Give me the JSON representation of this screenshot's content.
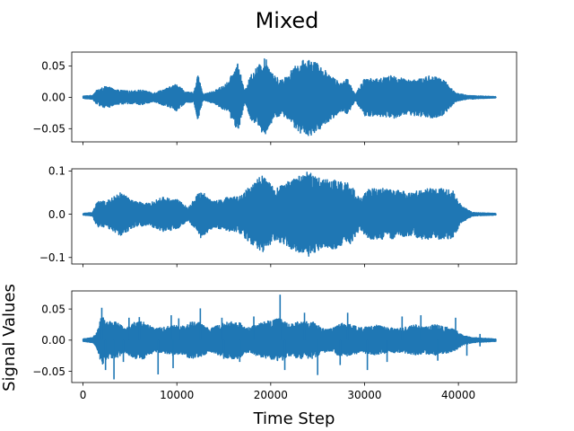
{
  "figure": {
    "suptitle": "Mixed",
    "xlabel": "Time Step",
    "ylabel": "Signal Values"
  },
  "chart_data": [
    {
      "type": "line",
      "title": "",
      "xlim": [
        -1200,
        46200
      ],
      "ylim": [
        -0.071,
        0.072
      ],
      "xticks": [
        0,
        10000,
        20000,
        30000,
        40000
      ],
      "yticks": [
        -0.05,
        0.0,
        0.05
      ],
      "ytick_labels": [
        "−0.05",
        "0.00",
        "0.05"
      ],
      "show_xticklabels": false,
      "color": "#1f77b4",
      "series": [
        {
          "envelope": [
            [
              0,
              0.002
            ],
            [
              1000,
              0.003
            ],
            [
              1500,
              0.012
            ],
            [
              2500,
              0.018
            ],
            [
              3500,
              0.012
            ],
            [
              5000,
              0.01
            ],
            [
              6200,
              0.012
            ],
            [
              7500,
              0.007
            ],
            [
              9000,
              0.015
            ],
            [
              10000,
              0.022
            ],
            [
              11000,
              0.008
            ],
            [
              11800,
              0.008
            ],
            [
              12200,
              0.038
            ],
            [
              12800,
              0.005
            ],
            [
              14000,
              0.01
            ],
            [
              15500,
              0.025
            ],
            [
              16500,
              0.057
            ],
            [
              17200,
              0.01
            ],
            [
              18000,
              0.04
            ],
            [
              19500,
              0.064
            ],
            [
              20300,
              0.035
            ],
            [
              21200,
              0.028
            ],
            [
              22300,
              0.045
            ],
            [
              23200,
              0.058
            ],
            [
              24300,
              0.062
            ],
            [
              25300,
              0.05
            ],
            [
              26500,
              0.035
            ],
            [
              27500,
              0.022
            ],
            [
              28200,
              0.03
            ],
            [
              29000,
              0.005
            ],
            [
              30000,
              0.03
            ],
            [
              31500,
              0.03
            ],
            [
              33000,
              0.035
            ],
            [
              34500,
              0.028
            ],
            [
              35800,
              0.03
            ],
            [
              37000,
              0.035
            ],
            [
              38500,
              0.028
            ],
            [
              39700,
              0.007
            ],
            [
              41000,
              0.003
            ],
            [
              44000,
              0.001
            ]
          ]
        }
      ]
    },
    {
      "type": "line",
      "title": "",
      "xlim": [
        -1200,
        46200
      ],
      "ylim": [
        -0.115,
        0.105
      ],
      "xticks": [
        0,
        10000,
        20000,
        30000,
        40000
      ],
      "yticks": [
        -0.1,
        0.0,
        0.1
      ],
      "ytick_labels": [
        "−0.1",
        "0.0",
        "0.1"
      ],
      "show_xticklabels": false,
      "color": "#1f77b4",
      "series": [
        {
          "envelope": [
            [
              0,
              0.002
            ],
            [
              1000,
              0.004
            ],
            [
              1500,
              0.03
            ],
            [
              2500,
              0.03
            ],
            [
              4000,
              0.05
            ],
            [
              5500,
              0.03
            ],
            [
              7000,
              0.025
            ],
            [
              8500,
              0.04
            ],
            [
              10000,
              0.035
            ],
            [
              11200,
              0.015
            ],
            [
              12500,
              0.055
            ],
            [
              14000,
              0.03
            ],
            [
              15500,
              0.04
            ],
            [
              16500,
              0.04
            ],
            [
              17500,
              0.06
            ],
            [
              19000,
              0.09
            ],
            [
              20500,
              0.06
            ],
            [
              21500,
              0.07
            ],
            [
              22500,
              0.085
            ],
            [
              24000,
              0.1
            ],
            [
              25500,
              0.08
            ],
            [
              27000,
              0.08
            ],
            [
              28500,
              0.07
            ],
            [
              29500,
              0.035
            ],
            [
              30500,
              0.06
            ],
            [
              32000,
              0.06
            ],
            [
              33500,
              0.055
            ],
            [
              35000,
              0.05
            ],
            [
              36500,
              0.06
            ],
            [
              38000,
              0.06
            ],
            [
              39500,
              0.055
            ],
            [
              40300,
              0.02
            ],
            [
              41500,
              0.004
            ],
            [
              44000,
              0.002
            ]
          ]
        }
      ]
    },
    {
      "type": "line",
      "title": "",
      "xlim": [
        -1200,
        46200
      ],
      "ylim": [
        -0.068,
        0.079
      ],
      "xticks": [
        0,
        10000,
        20000,
        30000,
        40000
      ],
      "xtick_labels": [
        "0",
        "10000",
        "20000",
        "30000",
        "40000"
      ],
      "yticks": [
        -0.05,
        0.0,
        0.05
      ],
      "ytick_labels": [
        "−0.05",
        "0.00",
        "0.05"
      ],
      "show_xticklabels": true,
      "color": "#1f77b4",
      "series": [
        {
          "envelope": [
            [
              0,
              0.002
            ],
            [
              1000,
              0.004
            ],
            [
              1500,
              0.015
            ],
            [
              2000,
              0.04
            ],
            [
              2500,
              0.03
            ],
            [
              3500,
              0.03
            ],
            [
              4500,
              0.02
            ],
            [
              5500,
              0.03
            ],
            [
              6500,
              0.03
            ],
            [
              7500,
              0.02
            ],
            [
              8500,
              0.02
            ],
            [
              9500,
              0.025
            ],
            [
              10500,
              0.022
            ],
            [
              11500,
              0.03
            ],
            [
              12500,
              0.028
            ],
            [
              13500,
              0.018
            ],
            [
              14500,
              0.025
            ],
            [
              15500,
              0.03
            ],
            [
              16500,
              0.03
            ],
            [
              17500,
              0.02
            ],
            [
              18500,
              0.025
            ],
            [
              19500,
              0.03
            ],
            [
              21000,
              0.035
            ],
            [
              22000,
              0.025
            ],
            [
              23000,
              0.03
            ],
            [
              24500,
              0.03
            ],
            [
              25500,
              0.02
            ],
            [
              26500,
              0.018
            ],
            [
              27500,
              0.028
            ],
            [
              28500,
              0.025
            ],
            [
              29500,
              0.02
            ],
            [
              30500,
              0.022
            ],
            [
              31500,
              0.025
            ],
            [
              32500,
              0.02
            ],
            [
              34000,
              0.02
            ],
            [
              35500,
              0.025
            ],
            [
              36500,
              0.022
            ],
            [
              37500,
              0.025
            ],
            [
              38500,
              0.022
            ],
            [
              39500,
              0.018
            ],
            [
              40500,
              0.008
            ],
            [
              41500,
              0.004
            ],
            [
              44000,
              0.002
            ]
          ],
          "spikes": [
            [
              2000,
              0.052
            ],
            [
              2400,
              -0.048
            ],
            [
              3300,
              -0.063
            ],
            [
              4300,
              -0.035
            ],
            [
              4900,
              0.036
            ],
            [
              6000,
              0.037
            ],
            [
              8000,
              -0.055
            ],
            [
              9400,
              0.04
            ],
            [
              9600,
              -0.045
            ],
            [
              10200,
              0.035
            ],
            [
              12500,
              0.051
            ],
            [
              14800,
              0.036
            ],
            [
              15000,
              -0.03
            ],
            [
              16700,
              -0.035
            ],
            [
              18200,
              0.038
            ],
            [
              21000,
              0.073
            ],
            [
              21500,
              -0.048
            ],
            [
              23600,
              0.044
            ],
            [
              25000,
              -0.056
            ],
            [
              27400,
              -0.04
            ],
            [
              28200,
              0.044
            ],
            [
              30300,
              -0.048
            ],
            [
              32400,
              -0.035
            ],
            [
              34000,
              0.038
            ],
            [
              36000,
              0.04
            ],
            [
              37800,
              -0.033
            ],
            [
              39700,
              0.036
            ],
            [
              40900,
              -0.025
            ],
            [
              42300,
              0.01
            ],
            [
              42300,
              -0.01
            ]
          ]
        }
      ]
    }
  ]
}
